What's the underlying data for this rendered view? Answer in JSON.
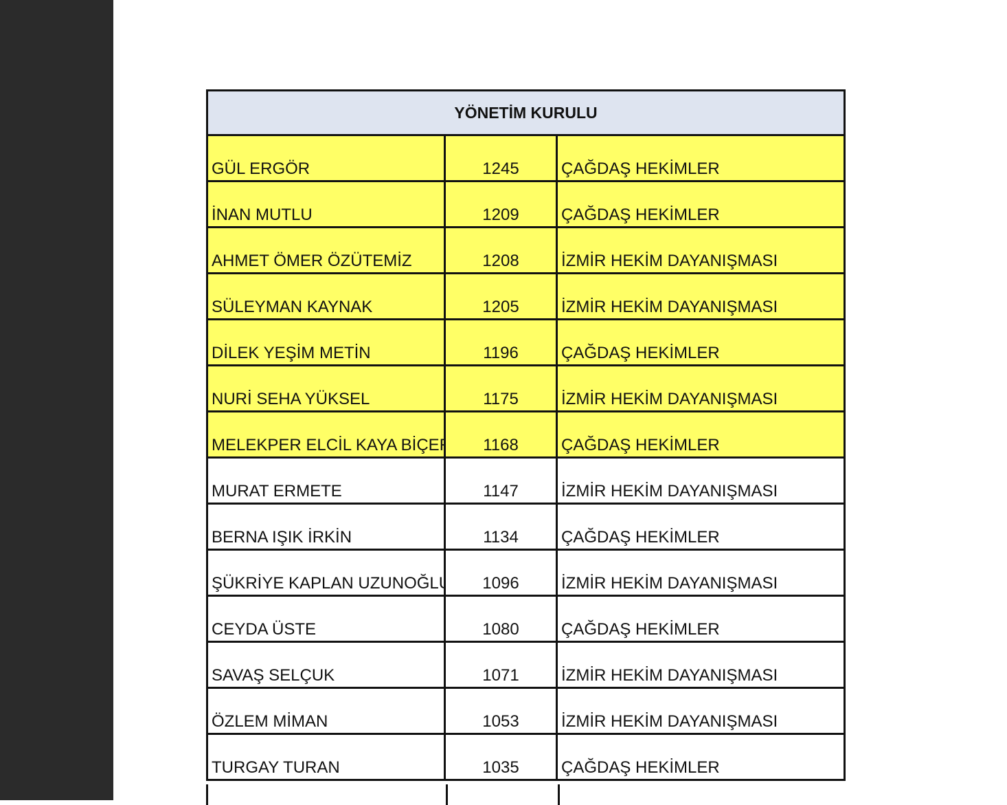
{
  "table": {
    "title": "YÖNETİM KURULU",
    "highlight_color": "#ffff66",
    "rows": [
      {
        "name": "GÜL ERGÖR",
        "votes": "1245",
        "group": "ÇAĞDAŞ HEKİMLER",
        "highlighted": true
      },
      {
        "name": "İNAN MUTLU",
        "votes": "1209",
        "group": "ÇAĞDAŞ HEKİMLER",
        "highlighted": true
      },
      {
        "name": "AHMET ÖMER ÖZÜTEMİZ",
        "votes": "1208",
        "group": "İZMİR HEKİM DAYANIŞMASI",
        "highlighted": true
      },
      {
        "name": "SÜLEYMAN KAYNAK",
        "votes": "1205",
        "group": "İZMİR HEKİM DAYANIŞMASI",
        "highlighted": true
      },
      {
        "name": "DİLEK YEŞİM METİN",
        "votes": "1196",
        "group": "ÇAĞDAŞ HEKİMLER",
        "highlighted": true
      },
      {
        "name": "NURİ SEHA YÜKSEL",
        "votes": "1175",
        "group": "İZMİR HEKİM DAYANIŞMASI",
        "highlighted": true
      },
      {
        "name": "MELEKPER ELCİL KAYA BİÇER",
        "votes": "1168",
        "group": "ÇAĞDAŞ HEKİMLER",
        "highlighted": true
      },
      {
        "name": "MURAT ERMETE",
        "votes": "1147",
        "group": "İZMİR HEKİM DAYANIŞMASI",
        "highlighted": false
      },
      {
        "name": "BERNA IŞIK İRKİN",
        "votes": "1134",
        "group": "ÇAĞDAŞ HEKİMLER",
        "highlighted": false
      },
      {
        "name": "ŞÜKRİYE KAPLAN UZUNOĞLU",
        "votes": "1096",
        "group": "İZMİR HEKİM DAYANIŞMASI",
        "highlighted": false
      },
      {
        "name": "CEYDA ÜSTE",
        "votes": "1080",
        "group": "ÇAĞDAŞ HEKİMLER",
        "highlighted": false
      },
      {
        "name": "SAVAŞ SELÇUK",
        "votes": "1071",
        "group": "İZMİR HEKİM DAYANIŞMASI",
        "highlighted": false
      },
      {
        "name": "ÖZLEM MİMAN",
        "votes": "1053",
        "group": "İZMİR HEKİM DAYANIŞMASI",
        "highlighted": false
      },
      {
        "name": "TURGAY TURAN",
        "votes": "1035",
        "group": "ÇAĞDAŞ HEKİMLER",
        "highlighted": false
      }
    ]
  }
}
